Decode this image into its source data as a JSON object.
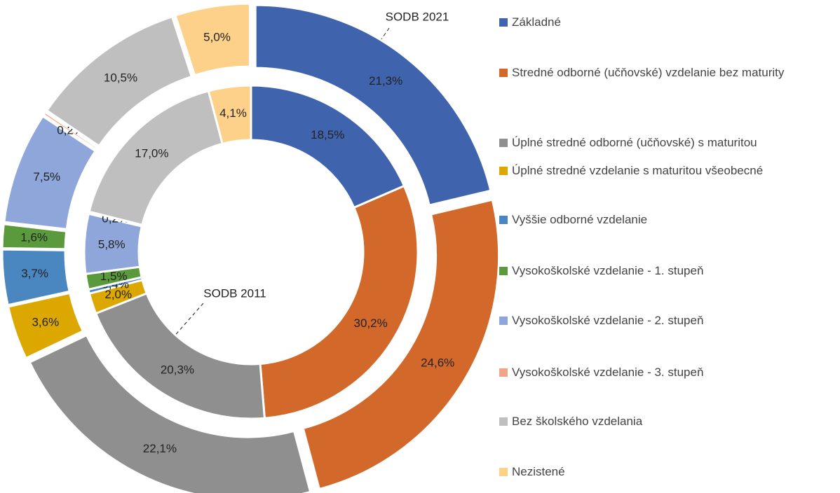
{
  "chart_data": {
    "type": "donut",
    "categories": [
      "Základné",
      "Stredné odborné (učňovské) vzdelanie bez maturity",
      "Úplné stredné odborné (učňovské) s maturitou",
      "Úplné stredné vzdelanie s maturitou všeobecné",
      "Vyššie odborné vzdelanie",
      "Vysokoškolské vzdelanie - 1. stupeň",
      "Vysokoškolské vzdelanie - 2. stupeň",
      "Vysokoškolské vzdelanie - 3. stupeň",
      "Bez školského vzdelania",
      "Nezistené"
    ],
    "colors": [
      "#3f63ad",
      "#d2692a",
      "#8f8f8f",
      "#dca800",
      "#4a86c0",
      "#5a9a3c",
      "#8ea6da",
      "#f0a488",
      "#bfbfbf",
      "#fdd18a"
    ],
    "series": [
      {
        "name": "SODB 2021",
        "values": [
          21.3,
          24.6,
          22.1,
          3.6,
          3.7,
          1.6,
          7.5,
          0.2,
          10.5,
          5.0
        ],
        "value_labels": [
          "21,3%",
          "24,6%",
          "22,1%",
          "3,6%",
          "3,7%",
          "1,6%",
          "7,5%",
          "0,2%",
          "10,5%",
          "5,0%"
        ]
      },
      {
        "name": "SODB 2011",
        "values": [
          18.5,
          30.2,
          20.3,
          2.0,
          0.4,
          1.5,
          5.8,
          0.2,
          17.0,
          4.1
        ],
        "value_labels": [
          "18,5%",
          "30,2%",
          "20,3%",
          "2,0%",
          "0,4%",
          "1,5%",
          "5,8%",
          "0,2%",
          "17,0%",
          "4,1%"
        ]
      }
    ]
  }
}
